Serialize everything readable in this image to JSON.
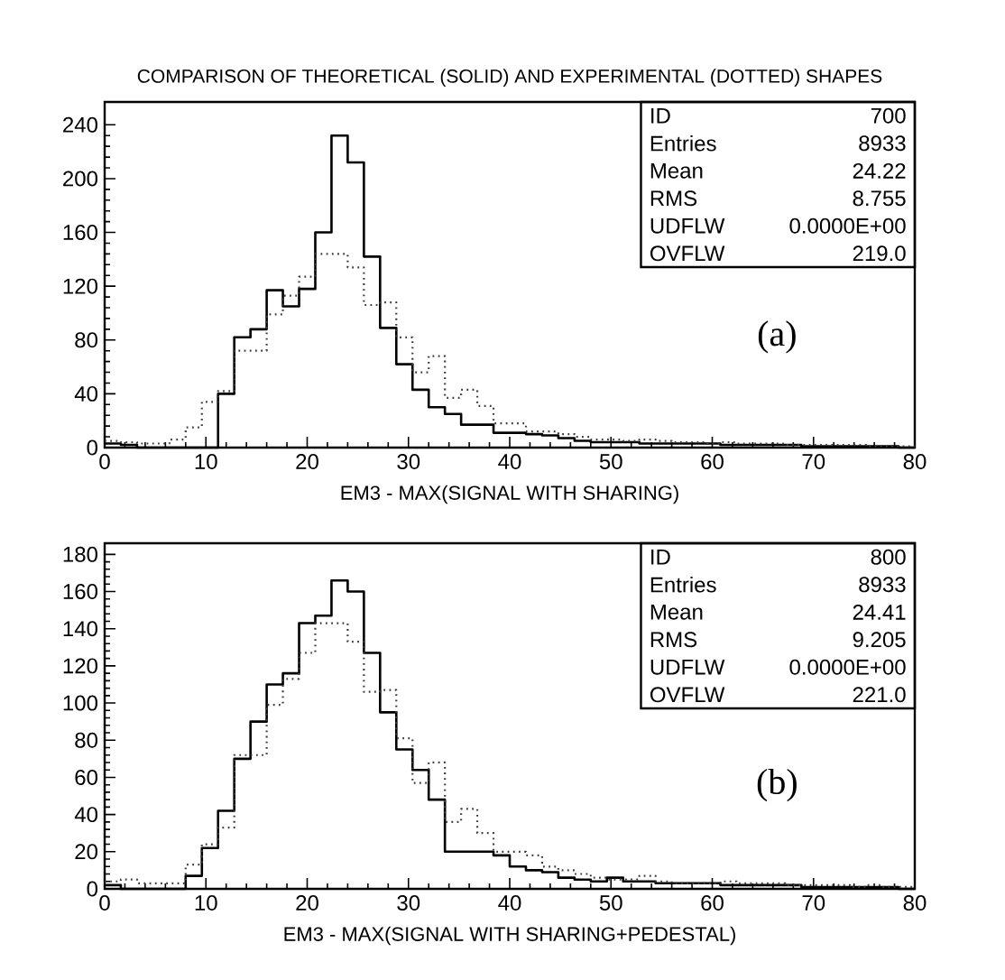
{
  "chart_data": [
    {
      "type": "histogram",
      "title": "COMPARISON OF THEORETICAL (SOLID) AND EXPERIMENTAL (DOTTED) SHAPES",
      "xlabel": "EM3 - MAX(SIGNAL WITH SHARING)",
      "bins": [
        0,
        1.6,
        3.2,
        4.8,
        6.4,
        8,
        9.6,
        11.2,
        12.8,
        14.4,
        16,
        17.6,
        19.2,
        20.8,
        22.4,
        24,
        25.6,
        27.2,
        28.8,
        30.4,
        32,
        33.6,
        35.2,
        36.8,
        38.4,
        40,
        41.6,
        43.2,
        44.8,
        46.4,
        48,
        49.6,
        51.2,
        52.8,
        54.4,
        56,
        57.6,
        59.2,
        60.8,
        62.4,
        64,
        65.6,
        67.2,
        68.8,
        70.4,
        72,
        73.6,
        75.2,
        76.8,
        78.4,
        80
      ],
      "series": [
        {
          "color": "#000000",
          "line_style": "solid",
          "values": [
            3,
            2,
            0,
            0,
            0,
            0,
            0,
            40,
            82,
            88,
            117,
            105,
            118,
            160,
            232,
            212,
            142,
            89,
            62,
            43,
            30,
            25,
            17,
            17,
            11,
            11,
            10,
            9,
            7,
            5,
            4,
            4,
            4,
            3,
            3,
            3,
            3,
            3,
            2,
            2,
            2,
            2,
            2,
            1,
            1,
            1,
            1,
            1,
            1,
            0
          ]
        },
        {
          "color": "#3c3c3c",
          "line_style": "dotted",
          "values": [
            5,
            4,
            3,
            3,
            6,
            15,
            34,
            42,
            72,
            72,
            99,
            113,
            127,
            144,
            144,
            134,
            106,
            108,
            82,
            56,
            68,
            37,
            43,
            31,
            18,
            18,
            12,
            12,
            10,
            8,
            6,
            6,
            5,
            6,
            5,
            4,
            4,
            3,
            4,
            3,
            3,
            3,
            2,
            2,
            2,
            2,
            2,
            1,
            1,
            1
          ]
        }
      ],
      "xlim": [
        0,
        80
      ],
      "ylim": [
        0,
        257
      ],
      "xticks": [
        0,
        10,
        20,
        30,
        40,
        50,
        60,
        70,
        80
      ],
      "yticks": [
        0,
        40,
        80,
        120,
        160,
        200,
        240
      ],
      "annotations": [
        "ID",
        "700",
        "Entries",
        "8933",
        "Mean",
        "24.22",
        "RMS",
        "8.755",
        "UDFLW",
        "0.0000E+00",
        "OVFLW",
        "219.0",
        "(a)"
      ]
    },
    {
      "type": "histogram",
      "xlabel": "EM3 - MAX(SIGNAL WITH SHARING+PEDESTAL)",
      "bins": [
        0,
        1.6,
        3.2,
        4.8,
        6.4,
        8,
        9.6,
        11.2,
        12.8,
        14.4,
        16,
        17.6,
        19.2,
        20.8,
        22.4,
        24,
        25.6,
        27.2,
        28.8,
        30.4,
        32,
        33.6,
        35.2,
        36.8,
        38.4,
        40,
        41.6,
        43.2,
        44.8,
        46.4,
        48,
        49.6,
        51.2,
        52.8,
        54.4,
        56,
        57.6,
        59.2,
        60.8,
        62.4,
        64,
        65.6,
        67.2,
        68.8,
        70.4,
        72,
        73.6,
        75.2,
        76.8,
        78.4,
        80
      ],
      "series": [
        {
          "color": "#000000",
          "line_style": "solid",
          "values": [
            2,
            0,
            0,
            0,
            0,
            7,
            22,
            42,
            70,
            90,
            110,
            116,
            143,
            147,
            166,
            160,
            127,
            95,
            75,
            64,
            48,
            20,
            20,
            20,
            18,
            12,
            10,
            9,
            6,
            5,
            4,
            6,
            4,
            4,
            3,
            3,
            3,
            3,
            2,
            2,
            2,
            2,
            2,
            1,
            1,
            1,
            1,
            1,
            1,
            0
          ]
        },
        {
          "color": "#3c3c3c",
          "line_style": "dotted",
          "values": [
            4,
            5,
            3,
            3,
            3,
            13,
            24,
            33,
            72,
            72,
            99,
            113,
            127,
            143,
            143,
            133,
            106,
            107,
            81,
            57,
            68,
            36,
            43,
            30,
            20,
            20,
            18,
            12,
            10,
            8,
            6,
            5,
            5,
            7,
            4,
            3,
            3,
            3,
            4,
            3,
            3,
            3,
            2,
            2,
            2,
            2,
            1,
            2,
            1,
            1
          ]
        }
      ],
      "xlim": [
        0,
        80
      ],
      "ylim": [
        0,
        186
      ],
      "xticks": [
        0,
        10,
        20,
        30,
        40,
        50,
        60,
        70,
        80
      ],
      "yticks": [
        0,
        20,
        40,
        60,
        80,
        100,
        120,
        140,
        160,
        180
      ],
      "annotations": [
        "ID",
        "800",
        "Entries",
        "8933",
        "Mean",
        "24.41",
        "RMS",
        "9.205",
        "UDFLW",
        "0.0000E+00",
        "OVFLW",
        "221.0",
        "(b)"
      ]
    }
  ]
}
